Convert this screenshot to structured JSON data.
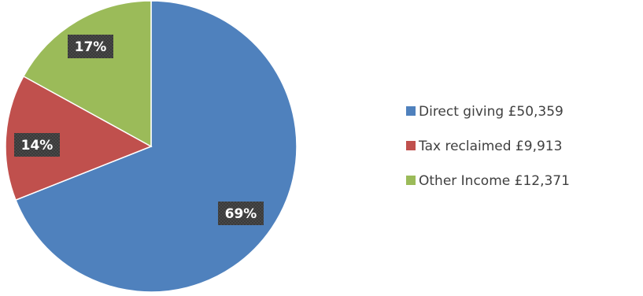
{
  "chart_data": {
    "type": "pie",
    "title": "",
    "slices": [
      {
        "name": "Direct giving",
        "amount": "£50,359",
        "value": 69,
        "label": "69%",
        "color": "#4f81bd"
      },
      {
        "name": "Tax reclaimed",
        "amount": "£9,913",
        "value": 14,
        "label": "14%",
        "color": "#c0504d"
      },
      {
        "name": "Other Income",
        "amount": "£12,371",
        "value": 17,
        "label": "17%",
        "color": "#9bbb59"
      }
    ],
    "legend_position": "right",
    "start_angle": "top, clockwise"
  }
}
